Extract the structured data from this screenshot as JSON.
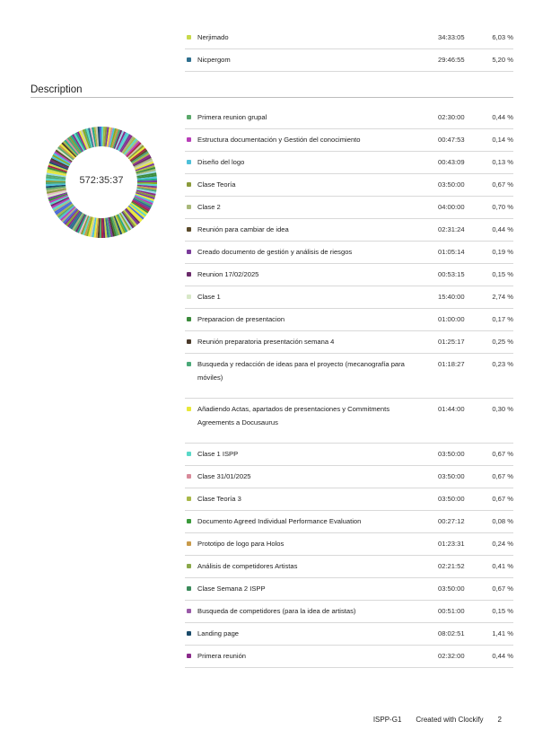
{
  "top_rows": [
    {
      "name": "Nerjimado",
      "duration": "34:33:05",
      "percent": "6,03 %",
      "color": "#c8d94a"
    },
    {
      "name": "Nicpergom",
      "duration": "29:46:55",
      "percent": "5,20 %",
      "color": "#2e6f8e"
    }
  ],
  "section": {
    "title": "Description"
  },
  "donut": {
    "total": "572:35:37"
  },
  "rows": [
    {
      "name": "Primera reunion grupal",
      "duration": "02:30:00",
      "percent": "0,44 %",
      "color": "#5aa86a"
    },
    {
      "name": "Estructura documentación y Gestión del conocimiento",
      "duration": "00:47:53",
      "percent": "0,14 %",
      "color": "#b83db8"
    },
    {
      "name": "Diseño del logo",
      "duration": "00:43:09",
      "percent": "0,13 %",
      "color": "#4ec0d9"
    },
    {
      "name": "Clase Teoría",
      "duration": "03:50:00",
      "percent": "0,67 %",
      "color": "#8a9a3a"
    },
    {
      "name": "Clase 2",
      "duration": "04:00:00",
      "percent": "0,70 %",
      "color": "#a8b87a"
    },
    {
      "name": "Reunión para cambiar de idea",
      "duration": "02:31:24",
      "percent": "0,44 %",
      "color": "#5a4a2a"
    },
    {
      "name": "Creado documento de gestión y análisis de riesgos",
      "duration": "01:05:14",
      "percent": "0,19 %",
      "color": "#7a3a9a"
    },
    {
      "name": "Reunion 17/02/2025",
      "duration": "00:53:15",
      "percent": "0,15 %",
      "color": "#6a2a6a"
    },
    {
      "name": "Clase 1",
      "duration": "15:40:00",
      "percent": "2,74 %",
      "color": "#d8e8c8"
    },
    {
      "name": "Preparacion de presentacion",
      "duration": "01:00:00",
      "percent": "0,17 %",
      "color": "#3a8a3a"
    },
    {
      "name": "Reunión preparatoria presentación semana 4",
      "duration": "01:25:17",
      "percent": "0,25 %",
      "color": "#4a3a2a"
    },
    {
      "name": "Busqueda y redacción de ideas para el proyecto (mecanografía para móviles)",
      "duration": "01:18:27",
      "percent": "0,23 %",
      "color": "#4aa878"
    },
    {
      "name": "Añadiendo Actas, apartados de presentaciones y Commitments Agreements a Docusaurus",
      "duration": "01:44:00",
      "percent": "0,30 %",
      "color": "#e8e838"
    },
    {
      "name": "Clase 1 ISPP",
      "duration": "03:50:00",
      "percent": "0,67 %",
      "color": "#5ad8c8"
    },
    {
      "name": "Clase 31/01/2025",
      "duration": "03:50:00",
      "percent": "0,67 %",
      "color": "#d88a9a"
    },
    {
      "name": "Clase Teoría 3",
      "duration": "03:50:00",
      "percent": "0,67 %",
      "color": "#a8b848"
    },
    {
      "name": "Documento Agreed Individual Performance Evaluation",
      "duration": "00:27:12",
      "percent": "0,08 %",
      "color": "#3a9a3a"
    },
    {
      "name": "Prototipo de logo para Holos",
      "duration": "01:23:31",
      "percent": "0,24 %",
      "color": "#c89a4a"
    },
    {
      "name": "Análisis de competidores Artistas",
      "duration": "02:21:52",
      "percent": "0,41 %",
      "color": "#8aa84a"
    },
    {
      "name": "Clase Semana 2 ISPP",
      "duration": "03:50:00",
      "percent": "0,67 %",
      "color": "#3a8a5a"
    },
    {
      "name": "Busqueda de competidores (para la idea de artistas)",
      "duration": "00:51:00",
      "percent": "0,15 %",
      "color": "#9a5aa8"
    },
    {
      "name": "Landing page",
      "duration": "08:02:51",
      "percent": "1,41 %",
      "color": "#1a4a6a"
    },
    {
      "name": "Primera reunión",
      "duration": "02:32:00",
      "percent": "0,44 %",
      "color": "#8a2a8a"
    }
  ],
  "footer": {
    "project": "ISPP-G1",
    "created": "Created with Clockify",
    "page": "2"
  }
}
